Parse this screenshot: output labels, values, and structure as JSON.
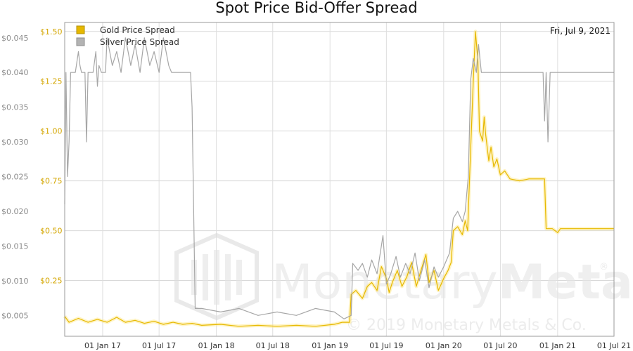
{
  "chart_data": {
    "type": "line",
    "title": "Spot Price Bid-Offer Spread",
    "date_label": "Fri, Jul 9, 2021",
    "xlim": [
      "2016-09-01",
      "2021-07-01"
    ],
    "x_ticks": [
      "01 Jan 17",
      "01 Jul 17",
      "01 Jan 18",
      "01 Jul 18",
      "01 Jan 19",
      "01 Jul 19",
      "01 Jan 20",
      "01 Jul 20",
      "01 Jan 21",
      "01 Jul 21"
    ],
    "y_left_ticks": [
      "$0.005",
      "$0.010",
      "$0.015",
      "$0.020",
      "$0.025",
      "$0.030",
      "$0.035",
      "$0.040",
      "$0.045"
    ],
    "y_left_lim": [
      0.002,
      0.0472
    ],
    "y_right_ticks": [
      "$0.25",
      "$0.50",
      "$0.75",
      "$1.00",
      "$1.25",
      "$1.50"
    ],
    "y_right_lim": [
      -0.03,
      1.545
    ],
    "grid": true,
    "legend_position": "top-left",
    "series": [
      {
        "name": "Gold Price Spread",
        "color": "#e6b800",
        "axis": "right",
        "points": [
          [
            "2016-09-01",
            0.07
          ],
          [
            "2016-09-15",
            0.04
          ],
          [
            "2016-10-15",
            0.06
          ],
          [
            "2016-11-15",
            0.04
          ],
          [
            "2016-12-15",
            0.055
          ],
          [
            "2017-01-15",
            0.04
          ],
          [
            "2017-02-15",
            0.065
          ],
          [
            "2017-03-15",
            0.04
          ],
          [
            "2017-04-15",
            0.05
          ],
          [
            "2017-05-15",
            0.035
          ],
          [
            "2017-06-15",
            0.045
          ],
          [
            "2017-07-15",
            0.03
          ],
          [
            "2017-08-15",
            0.04
          ],
          [
            "2017-09-15",
            0.03
          ],
          [
            "2017-10-15",
            0.035
          ],
          [
            "2017-11-15",
            0.025
          ],
          [
            "2018-01-15",
            0.03
          ],
          [
            "2018-03-15",
            0.02
          ],
          [
            "2018-05-15",
            0.025
          ],
          [
            "2018-07-15",
            0.02
          ],
          [
            "2018-09-15",
            0.025
          ],
          [
            "2018-11-15",
            0.02
          ],
          [
            "2019-01-15",
            0.03
          ],
          [
            "2019-02-10",
            0.04
          ],
          [
            "2019-03-05",
            0.04
          ],
          [
            "2019-03-10",
            0.18
          ],
          [
            "2019-03-25",
            0.2
          ],
          [
            "2019-04-15",
            0.16
          ],
          [
            "2019-05-01",
            0.22
          ],
          [
            "2019-05-15",
            0.24
          ],
          [
            "2019-06-01",
            0.2
          ],
          [
            "2019-06-15",
            0.32
          ],
          [
            "2019-07-01",
            0.26
          ],
          [
            "2019-07-10",
            0.19
          ],
          [
            "2019-07-20",
            0.24
          ],
          [
            "2019-08-05",
            0.3
          ],
          [
            "2019-08-20",
            0.22
          ],
          [
            "2019-09-05",
            0.27
          ],
          [
            "2019-09-20",
            0.34
          ],
          [
            "2019-10-05",
            0.22
          ],
          [
            "2019-10-20",
            0.3
          ],
          [
            "2019-11-05",
            0.38
          ],
          [
            "2019-11-15",
            0.24
          ],
          [
            "2019-12-01",
            0.3
          ],
          [
            "2019-12-15",
            0.2
          ],
          [
            "2020-01-01",
            0.26
          ],
          [
            "2020-01-15",
            0.3
          ],
          [
            "2020-01-25",
            0.34
          ],
          [
            "2020-02-01",
            0.5
          ],
          [
            "2020-02-15",
            0.52
          ],
          [
            "2020-03-01",
            0.48
          ],
          [
            "2020-03-10",
            0.55
          ],
          [
            "2020-03-18",
            0.5
          ],
          [
            "2020-03-25",
            0.8
          ],
          [
            "2020-04-05",
            1.25
          ],
          [
            "2020-04-12",
            1.5
          ],
          [
            "2020-04-20",
            1.35
          ],
          [
            "2020-04-25",
            1.0
          ],
          [
            "2020-05-05",
            0.95
          ],
          [
            "2020-05-10",
            1.07
          ],
          [
            "2020-05-15",
            0.98
          ],
          [
            "2020-05-25",
            0.85
          ],
          [
            "2020-06-01",
            0.92
          ],
          [
            "2020-06-10",
            0.82
          ],
          [
            "2020-06-20",
            0.86
          ],
          [
            "2020-07-01",
            0.78
          ],
          [
            "2020-07-15",
            0.8
          ],
          [
            "2020-08-01",
            0.76
          ],
          [
            "2020-09-01",
            0.75
          ],
          [
            "2020-10-01",
            0.76
          ],
          [
            "2020-11-01",
            0.76
          ],
          [
            "2020-11-20",
            0.76
          ],
          [
            "2020-11-25",
            0.51
          ],
          [
            "2020-12-15",
            0.51
          ],
          [
            "2021-01-01",
            0.49
          ],
          [
            "2021-01-10",
            0.51
          ],
          [
            "2021-03-01",
            0.51
          ],
          [
            "2021-05-01",
            0.51
          ],
          [
            "2021-07-01",
            0.51
          ]
        ]
      },
      {
        "name": "Silver Price Spread",
        "color": "#a6a6a6",
        "axis": "left",
        "points": [
          [
            "2016-09-01",
            0.021
          ],
          [
            "2016-09-05",
            0.04
          ],
          [
            "2016-09-10",
            0.025
          ],
          [
            "2016-09-15",
            0.03
          ],
          [
            "2016-09-20",
            0.04
          ],
          [
            "2016-10-05",
            0.04
          ],
          [
            "2016-10-15",
            0.043
          ],
          [
            "2016-10-20",
            0.041
          ],
          [
            "2016-10-25",
            0.04
          ],
          [
            "2016-11-05",
            0.04
          ],
          [
            "2016-11-10",
            0.03
          ],
          [
            "2016-11-15",
            0.04
          ],
          [
            "2016-12-01",
            0.04
          ],
          [
            "2016-12-10",
            0.043
          ],
          [
            "2016-12-15",
            0.038
          ],
          [
            "2016-12-20",
            0.041
          ],
          [
            "2016-12-28",
            0.04
          ],
          [
            "2017-01-10",
            0.04
          ],
          [
            "2017-01-15",
            0.045
          ],
          [
            "2017-02-01",
            0.041
          ],
          [
            "2017-02-15",
            0.043
          ],
          [
            "2017-03-01",
            0.04
          ],
          [
            "2017-03-15",
            0.045
          ],
          [
            "2017-04-01",
            0.041
          ],
          [
            "2017-04-15",
            0.044
          ],
          [
            "2017-05-01",
            0.04
          ],
          [
            "2017-05-15",
            0.045
          ],
          [
            "2017-06-01",
            0.041
          ],
          [
            "2017-06-15",
            0.043
          ],
          [
            "2017-07-01",
            0.04
          ],
          [
            "2017-07-15",
            0.045
          ],
          [
            "2017-08-01",
            0.041
          ],
          [
            "2017-08-10",
            0.04
          ],
          [
            "2017-09-01",
            0.04
          ],
          [
            "2017-10-10",
            0.04
          ],
          [
            "2017-10-15",
            0.035
          ],
          [
            "2017-10-25",
            0.006
          ],
          [
            "2017-11-15",
            0.006
          ],
          [
            "2018-01-15",
            0.0055
          ],
          [
            "2018-03-15",
            0.006
          ],
          [
            "2018-05-15",
            0.005
          ],
          [
            "2018-07-15",
            0.0055
          ],
          [
            "2018-09-15",
            0.005
          ],
          [
            "2018-11-15",
            0.006
          ],
          [
            "2019-01-15",
            0.0055
          ],
          [
            "2019-02-15",
            0.0045
          ],
          [
            "2019-03-10",
            0.005
          ],
          [
            "2019-03-15",
            0.0125
          ],
          [
            "2019-04-01",
            0.0115
          ],
          [
            "2019-04-15",
            0.0125
          ],
          [
            "2019-05-01",
            0.0105
          ],
          [
            "2019-05-15",
            0.013
          ],
          [
            "2019-06-01",
            0.011
          ],
          [
            "2019-06-20",
            0.0165
          ],
          [
            "2019-07-01",
            0.0095
          ],
          [
            "2019-07-15",
            0.011
          ],
          [
            "2019-08-01",
            0.0135
          ],
          [
            "2019-08-15",
            0.0105
          ],
          [
            "2019-09-01",
            0.0125
          ],
          [
            "2019-09-15",
            0.011
          ],
          [
            "2019-10-01",
            0.014
          ],
          [
            "2019-10-15",
            0.01
          ],
          [
            "2019-11-01",
            0.013
          ],
          [
            "2019-11-15",
            0.009
          ],
          [
            "2019-12-01",
            0.012
          ],
          [
            "2019-12-15",
            0.0105
          ],
          [
            "2020-01-01",
            0.012
          ],
          [
            "2020-01-20",
            0.014
          ],
          [
            "2020-02-01",
            0.019
          ],
          [
            "2020-02-15",
            0.02
          ],
          [
            "2020-03-01",
            0.0185
          ],
          [
            "2020-03-10",
            0.02
          ],
          [
            "2020-03-20",
            0.025
          ],
          [
            "2020-03-28",
            0.039
          ],
          [
            "2020-04-05",
            0.042
          ],
          [
            "2020-04-15",
            0.04
          ],
          [
            "2020-04-22",
            0.044
          ],
          [
            "2020-05-01",
            0.04
          ],
          [
            "2020-06-15",
            0.04
          ],
          [
            "2020-08-15",
            0.04
          ],
          [
            "2020-10-15",
            0.04
          ],
          [
            "2020-11-15",
            0.04
          ],
          [
            "2020-11-20",
            0.033
          ],
          [
            "2020-11-25",
            0.04
          ],
          [
            "2020-12-01",
            0.03
          ],
          [
            "2020-12-08",
            0.04
          ],
          [
            "2021-02-01",
            0.04
          ],
          [
            "2021-04-01",
            0.04
          ],
          [
            "2021-07-01",
            0.04
          ]
        ]
      }
    ]
  },
  "watermark": {
    "brand_light": "Monetary",
    "brand_bold": "Metals",
    "registered": "®",
    "copyright": "© 2019 Monetary Metals & Co."
  }
}
